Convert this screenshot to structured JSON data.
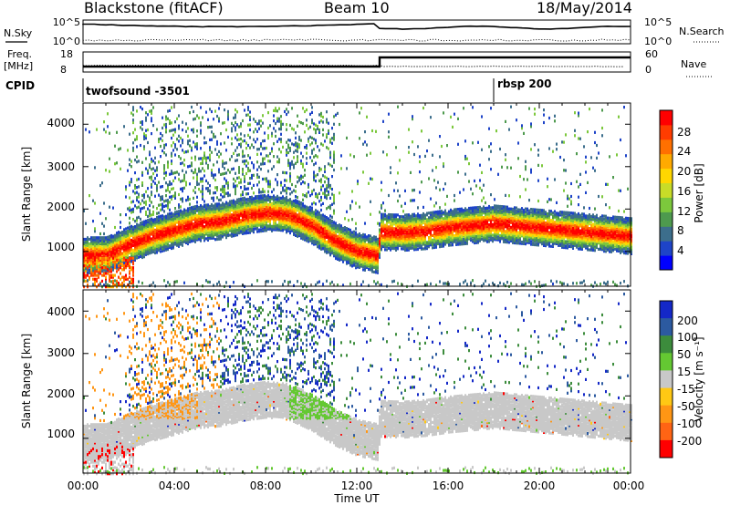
{
  "header": {
    "station": "Blackstone (fitACF)",
    "beam": "Beam 10",
    "date": "18/May/2014"
  },
  "scan_panel": {
    "left_label": "N.Sky",
    "right_label": "N.Search",
    "left_ticks": [
      "10^5",
      "10^0"
    ],
    "right_ticks": [
      "10^5",
      "10^0"
    ]
  },
  "freq_panel": {
    "label": "Freq.",
    "unit": "[MHz]",
    "left_ticks": [
      "18",
      "8"
    ],
    "right_label": "Nave",
    "right_ticks": [
      "60",
      "0"
    ]
  },
  "cpid_row": {
    "label": "CPID",
    "entries": [
      {
        "text": "twofsound -3501",
        "start_hour": 0
      },
      {
        "text": "rbsp 200",
        "start_hour": 18.0
      }
    ]
  },
  "chart_data": [
    {
      "type": "heatmap",
      "quantity": "Power",
      "ylabel": "Slant Range [km]",
      "ylim": [
        180,
        4500
      ],
      "y_ticks": [
        "1000",
        "2000",
        "3000",
        "4000"
      ],
      "colorbar_label": "Power [dB]",
      "colorbar_ticks": [
        "4",
        "8",
        "12",
        "16",
        "20",
        "24",
        "28"
      ],
      "colorbar_range": [
        0,
        32
      ],
      "colorscale": [
        "#0000ff",
        "#1e44c8",
        "#3c6e8c",
        "#4e9a4e",
        "#7cc83c",
        "#c8dc28",
        "#ffd700",
        "#ffaa00",
        "#ff7000",
        "#ff3c00",
        "#ff0000"
      ],
      "main_echo_band_km": [
        [
          0,
          950
        ],
        [
          1,
          950
        ],
        [
          2,
          1200
        ],
        [
          3,
          1400
        ],
        [
          4,
          1550
        ],
        [
          5,
          1700
        ],
        [
          6,
          1750
        ],
        [
          7,
          1880
        ],
        [
          8,
          1950
        ],
        [
          9,
          1900
        ],
        [
          10,
          1650
        ],
        [
          11,
          1300
        ],
        [
          12,
          1050
        ],
        [
          12.9,
          950
        ],
        [
          13,
          1500
        ],
        [
          14,
          1480
        ],
        [
          15,
          1520
        ],
        [
          16,
          1600
        ],
        [
          17,
          1650
        ],
        [
          18,
          1700
        ],
        [
          19,
          1650
        ],
        [
          20,
          1600
        ],
        [
          21,
          1550
        ],
        [
          22,
          1500
        ],
        [
          23,
          1450
        ],
        [
          24,
          1400
        ]
      ]
    },
    {
      "type": "heatmap",
      "quantity": "Velocity",
      "ylabel": "Slant Range [km]",
      "xlabel": "Time UT",
      "ylim": [
        180,
        4500
      ],
      "y_ticks": [
        "1000",
        "2000",
        "3000",
        "4000"
      ],
      "x_ticks": [
        "00:00",
        "04:00",
        "08:00",
        "12:00",
        "16:00",
        "20:00",
        "00:00"
      ],
      "xlim_hours": [
        0,
        24
      ],
      "colorbar_label": "Velocity [m s⁻¹]",
      "colorbar_ticks": [
        "200",
        "100",
        "50",
        "15",
        "-15",
        "-50",
        "-100",
        "-200"
      ],
      "colorscale": [
        "#1428c8",
        "#2c5aa0",
        "#3c8c3c",
        "#64c832",
        "#c8c8c8",
        "#ffc814",
        "#ff9614",
        "#ff6414",
        "#ff0000"
      ],
      "ground_scatter_color": "#c8c8c8"
    }
  ]
}
